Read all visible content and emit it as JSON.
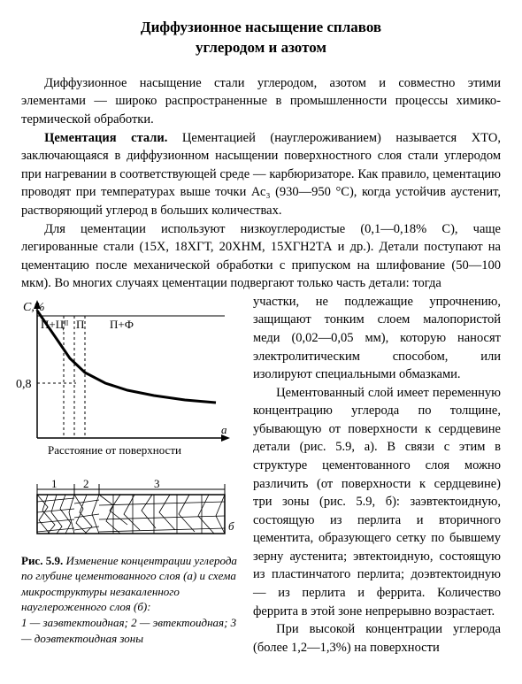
{
  "title_l1": "Диффузионное насыщение сплавов",
  "title_l2": "углеродом и азотом",
  "p1": "Диффузионное насыщение стали углеродом, азотом и совместно этими элементами — широко распространенные в промышленности процессы химико-термической обработки.",
  "p2_lead": "Цементация стали.",
  "p2_rest": " Цементацией (науглероживанием) называется ХТО, заключающаяся в диффузионном насыщении поверхностного слоя стали углеродом при нагревании в соответствующей среде — карбюризаторе. Как правило, цементацию проводят при температурах выше точки Ас₃ (930—950 °С), когда устойчив аустенит, растворяющий углерод в больших количествах.",
  "p3": "Для цементации используют низкоуглеродистые (0,1—0,18% С), чаще легированные стали (15Х, 18ХГТ, 20ХНМ, 15ХГН2ТА и др.). Детали поступают на цементацию после механической обработки с припуском на шлифование (50—100 мкм). Во многих случаях цементации подвергают только часть детали: тогда",
  "p3b": "участки, не подлежащие упрочнению, защищают тонким слоем малопористой меди (0,02—0,05 мм), которую наносят электролитическим способом, или изолируют специальными обмазками.",
  "p4": "Цементованный слой имеет переменную концентрацию углерода по толщине, убывающую от поверхности к сердцевине детали (рис. 5.9, а). В связи с этим в структуре цементованного слоя можно различить (от поверхности к сердцевине) три зоны (рис. 5.9, б): заэвтектоидную, состоящую из перлита и вторичного цементита, образующего сетку по бывшему зерну аустенита; эвтектоидную, состоящую из пластинчатого перлита; доэвтектоидную — из перлита и феррита. Количество феррита в этой зоне непрерывно возрастает.",
  "p5": "При высокой концентрации углерода (более 1,2—1,3%) на поверхности",
  "figA": {
    "ylabel": "С,%",
    "ytick": "0,8",
    "xlabel": "Расстояние от поверхности",
    "region1": "П+Цᴵᴵ",
    "region2": "П",
    "region3": "П+Ф",
    "sublabel": "а",
    "curve": [
      [
        18,
        16
      ],
      [
        40,
        48
      ],
      [
        55,
        70
      ],
      [
        72,
        86
      ],
      [
        95,
        98
      ],
      [
        120,
        106
      ],
      [
        150,
        112
      ],
      [
        185,
        117
      ],
      [
        220,
        120
      ]
    ],
    "axis_color": "#000",
    "curve_color": "#000",
    "curve_width": 3,
    "dash_color": "#000",
    "bg": "#fff",
    "ylim": [
      0,
      1.6
    ],
    "fontsize": 13
  },
  "figB": {
    "zones": [
      "1",
      "2",
      "3"
    ],
    "sublabel": "б",
    "line_color": "#000",
    "fill": "#fff"
  },
  "caption": {
    "lead": "Рис. 5.9.",
    "rest": " Изменение концентрации углерода по глубине цементованного слоя (а) и схема микроструктуры незакаленного науглероженного слоя (б):",
    "lines": "1 — заэвтектоидная; 2 — эвтектоидная; 3 — доэвтектоидная зоны"
  }
}
